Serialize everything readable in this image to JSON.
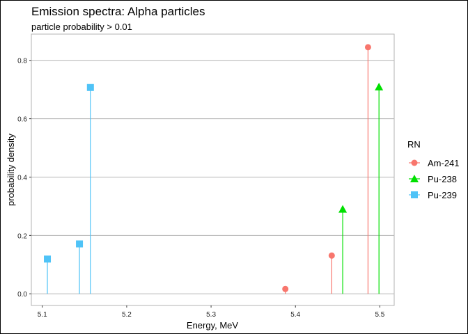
{
  "chart_data": {
    "type": "scatter",
    "title": "Emission spectra: Alpha particles",
    "subtitle": "particle probability > 0.01",
    "xlabel": "Energy, MeV",
    "ylabel": "probability density",
    "xlim": [
      5.087,
      5.517
    ],
    "ylim": [
      -0.04,
      0.89
    ],
    "xticks": [
      5.1,
      5.2,
      5.3,
      5.4,
      5.5
    ],
    "xtick_labels": [
      "5.1",
      "5.2",
      "5.3",
      "5.4",
      "5.5"
    ],
    "yticks": [
      0,
      0.2,
      0.4,
      0.6,
      0.8
    ],
    "ytick_labels": [
      "0.0",
      "0.2",
      "0.4",
      "0.6",
      "0.8"
    ],
    "grid": "horizontal major",
    "legend": {
      "title": "RN",
      "placement": "right"
    },
    "series": [
      {
        "name": "Am-241",
        "color": "#F8766D",
        "marker": "circle",
        "x": [
          5.388,
          5.443,
          5.486
        ],
        "y": [
          0.0166,
          0.131,
          0.845
        ]
      },
      {
        "name": "Pu-238",
        "color": "#00E000",
        "marker": "triangle",
        "x": [
          5.456,
          5.499
        ],
        "y": [
          0.29,
          0.709
        ]
      },
      {
        "name": "Pu-239",
        "color": "#4FC3F7",
        "marker": "square",
        "x": [
          5.106,
          5.144,
          5.157
        ],
        "y": [
          0.119,
          0.171,
          0.707
        ]
      }
    ]
  }
}
